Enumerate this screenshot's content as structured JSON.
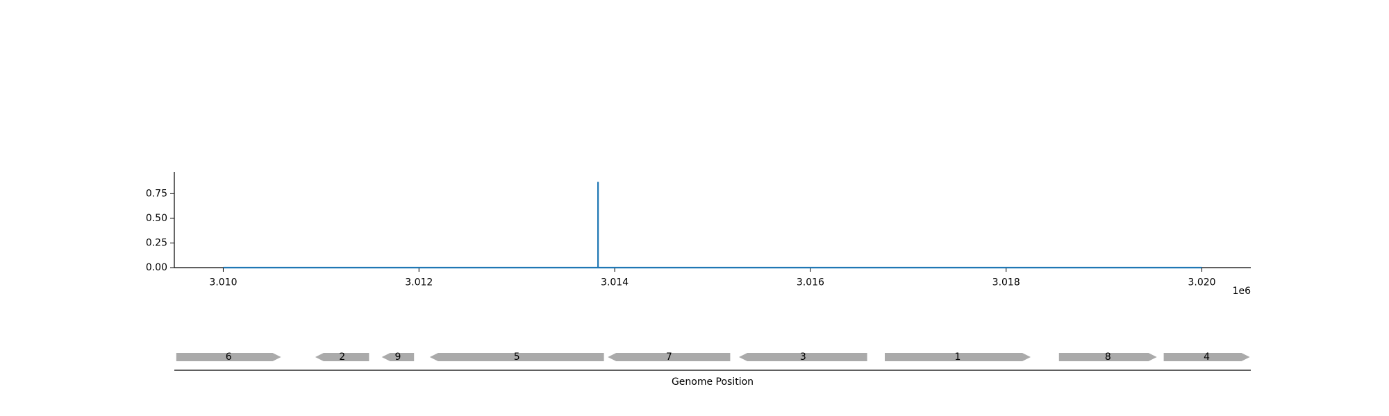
{
  "chart_data": [
    {
      "type": "line",
      "title": "",
      "xlabel": "",
      "ylabel": "",
      "x_offset_label": "1e6",
      "xlim": [
        3009500,
        3020500
      ],
      "ylim": [
        0,
        0.97
      ],
      "x_ticks": [
        3010000,
        3012000,
        3014000,
        3016000,
        3018000,
        3020000
      ],
      "x_tick_labels": [
        "3.010",
        "3.012",
        "3.014",
        "3.016",
        "3.018",
        "3.020"
      ],
      "y_ticks": [
        0,
        0.25,
        0.5,
        0.75
      ],
      "y_tick_labels": [
        "0.00",
        "0.25",
        "0.50",
        "0.75"
      ],
      "grid": false,
      "series": [
        {
          "color": "#1f77b4",
          "x": [
            3010000,
            3013830,
            3013830,
            3013830,
            3020000
          ],
          "y": [
            0,
            0,
            0.87,
            0,
            0
          ]
        }
      ]
    },
    {
      "type": "gene-track",
      "xlabel": "Genome Position",
      "xlim": [
        3009500,
        3020500
      ],
      "color": "#aaaaaa",
      "genes": [
        {
          "label": "6",
          "start": 3009520,
          "end": 3010590,
          "strand": "+"
        },
        {
          "label": "2",
          "start": 3010940,
          "end": 3011490,
          "strand": "-"
        },
        {
          "label": "9",
          "start": 3011620,
          "end": 3011950,
          "strand": "-"
        },
        {
          "label": "5",
          "start": 3012110,
          "end": 3013890,
          "strand": "-"
        },
        {
          "label": "7",
          "start": 3013930,
          "end": 3015180,
          "strand": "-"
        },
        {
          "label": "3",
          "start": 3015270,
          "end": 3016580,
          "strand": "-"
        },
        {
          "label": "1",
          "start": 3016760,
          "end": 3018250,
          "strand": "+"
        },
        {
          "label": "8",
          "start": 3018540,
          "end": 3019540,
          "strand": "+"
        },
        {
          "label": "4",
          "start": 3019610,
          "end": 3020490,
          "strand": "+"
        }
      ]
    }
  ]
}
